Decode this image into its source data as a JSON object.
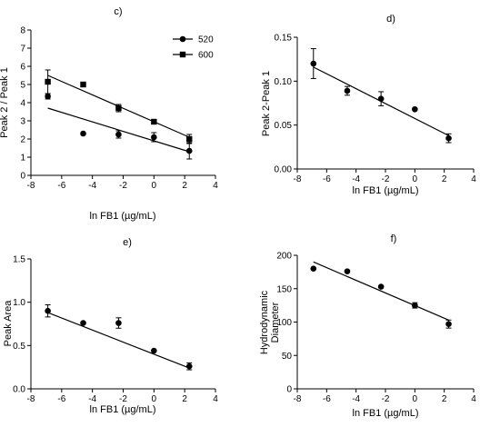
{
  "panels": [
    {
      "id": "c",
      "panel_label": "c)",
      "chart_data": {
        "type": "scatter",
        "xlabel": "ln FB1 (µg/mL)",
        "ylabel": "Peak 2 / Peak 1",
        "xlim": [
          -8,
          4
        ],
        "ylim": [
          0,
          8
        ],
        "xticks": [
          -8,
          -6,
          -4,
          -2,
          0,
          2,
          4
        ],
        "yticks": [
          0,
          1,
          2,
          3,
          4,
          5,
          6,
          7,
          8
        ],
        "legend": "top-right",
        "series": [
          {
            "name": "520",
            "marker": "circle",
            "x": [
              -6.9,
              -4.6,
              -2.3,
              0,
              2.3
            ],
            "y": [
              4.35,
              2.3,
              2.25,
              2.1,
              1.35
            ],
            "err": [
              0.15,
              0,
              0.2,
              0.25,
              0.45
            ],
            "fit": [
              [
                -6.9,
                3.7
              ],
              [
                2.3,
                1.3
              ]
            ]
          },
          {
            "name": "600",
            "marker": "square",
            "x": [
              -6.9,
              -4.6,
              -2.3,
              0,
              2.3
            ],
            "y": [
              5.15,
              5.0,
              3.7,
              2.95,
              2.0
            ],
            "err": [
              0.65,
              0,
              0.2,
              0,
              0.25
            ],
            "fit": [
              [
                -6.9,
                5.5
              ],
              [
                2.3,
                2.1
              ]
            ]
          }
        ]
      }
    },
    {
      "id": "d",
      "panel_label": "d)",
      "chart_data": {
        "type": "scatter",
        "xlabel": "ln FB1 (µg/mL)",
        "ylabel": "Peak 2-Peak 1",
        "xlim": [
          -8,
          4
        ],
        "ylim": [
          0,
          0.15
        ],
        "xticks": [
          -8,
          -6,
          -4,
          -2,
          0,
          2,
          4
        ],
        "yticks": [
          0,
          0.05,
          0.1,
          0.15
        ],
        "yticklabels": [
          "0.00",
          "0.05",
          "0.10",
          "0.15"
        ],
        "series": [
          {
            "marker": "circle",
            "x": [
              -6.9,
              -4.6,
              -2.3,
              0,
              2.3
            ],
            "y": [
              0.12,
              0.089,
              0.08,
              0.068,
              0.035
            ],
            "err": [
              0.017,
              0.005,
              0.008,
              0,
              0.005
            ],
            "fit": [
              [
                -6.9,
                0.116
              ],
              [
                2.3,
                0.038
              ]
            ]
          }
        ]
      }
    },
    {
      "id": "e",
      "panel_label": "e)",
      "chart_data": {
        "type": "scatter",
        "xlabel": "ln FB1 (µg/mL)",
        "ylabel": "Peak Area",
        "xlim": [
          -8,
          4
        ],
        "ylim": [
          0,
          1.5
        ],
        "xticks": [
          -8,
          -6,
          -4,
          -2,
          0,
          2,
          4
        ],
        "yticks": [
          0,
          0.5,
          1.0,
          1.5
        ],
        "yticklabels": [
          "0.0",
          "0.5",
          "1.0",
          "1.5"
        ],
        "series": [
          {
            "marker": "circle",
            "x": [
              -6.9,
              -4.6,
              -2.3,
              0,
              2.3
            ],
            "y": [
              0.9,
              0.76,
              0.76,
              0.44,
              0.26
            ],
            "err": [
              0.07,
              0,
              0.06,
              0,
              0.04
            ],
            "fit": [
              [
                -6.9,
                0.88
              ],
              [
                2.3,
                0.24
              ]
            ]
          }
        ]
      }
    },
    {
      "id": "f",
      "panel_label": "f)",
      "chart_data": {
        "type": "scatter",
        "xlabel": "ln FB1 (µg/mL)",
        "ylabel_lines": [
          "Hydrodynamic",
          "Diameter"
        ],
        "xlim": [
          -8,
          4
        ],
        "ylim": [
          0,
          200
        ],
        "xticks": [
          -8,
          -6,
          -4,
          -2,
          0,
          2,
          4
        ],
        "yticks": [
          0,
          50,
          100,
          150,
          200
        ],
        "series": [
          {
            "marker": "circle",
            "x": [
              -6.9,
              -4.6,
              -2.3,
              0,
              2.3
            ],
            "y": [
              180,
              176,
              153,
              125,
              97
            ],
            "err": [
              0,
              0,
              0,
              4,
              6
            ],
            "fit": [
              [
                -6.9,
                190
              ],
              [
                2.3,
                103
              ]
            ]
          }
        ]
      }
    }
  ]
}
